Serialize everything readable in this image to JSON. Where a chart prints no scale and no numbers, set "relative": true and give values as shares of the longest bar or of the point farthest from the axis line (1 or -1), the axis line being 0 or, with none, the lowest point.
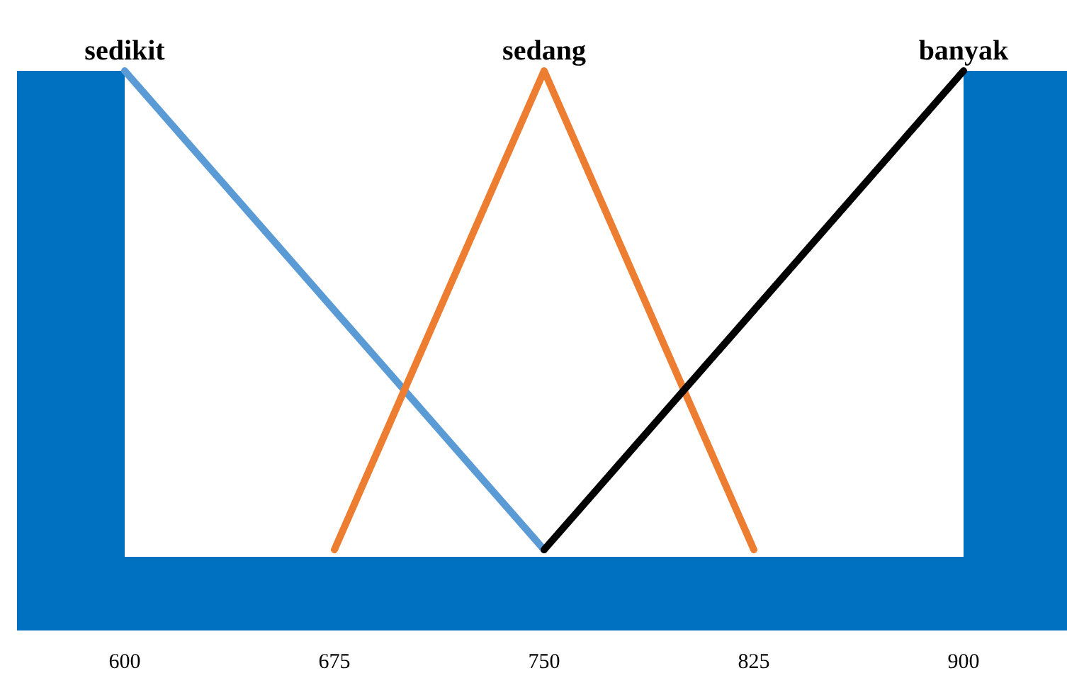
{
  "chart_data": {
    "type": "line",
    "relative": true,
    "xlim": [
      600,
      900
    ],
    "xticks": [
      600,
      675,
      750,
      825,
      900
    ],
    "grid": false,
    "legend": false,
    "marker": "none",
    "line_style": "solid",
    "series": [
      {
        "name": "sedikit",
        "color": "#5b9bd5",
        "x": [
          600,
          750
        ],
        "values": [
          1,
          0
        ]
      },
      {
        "name": "sedang",
        "color": "#ed7d31",
        "x": [
          675,
          750,
          825
        ],
        "values": [
          0,
          1,
          0
        ]
      },
      {
        "name": "banyak",
        "color": "#000000",
        "x": [
          750,
          900
        ],
        "values": [
          0,
          1
        ]
      }
    ]
  }
}
